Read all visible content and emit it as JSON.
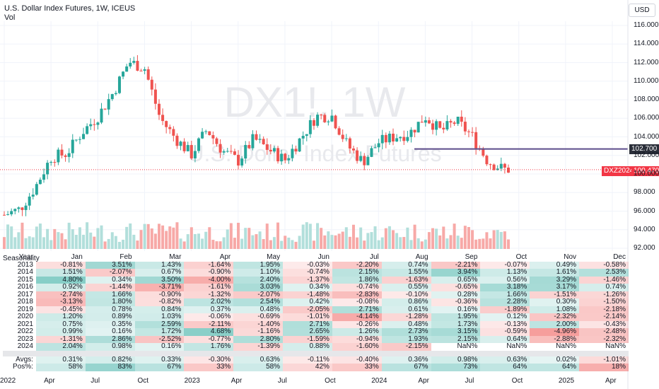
{
  "header": {
    "title": "U.S. Dollar Index Futures, 1W, ICEUS",
    "volume_label": "Vol"
  },
  "toolbar": {
    "currency": "USD"
  },
  "watermark": {
    "symbol": "DX1!, 1W",
    "description": "U.S. Dollar Index Futures"
  },
  "price_tags": {
    "level": "102.700",
    "last": "100.470",
    "symbol": "DXZ2024"
  },
  "colors": {
    "up": "#26a69a",
    "down": "#ef5350",
    "vol_up": "#b2dfdb",
    "vol_down": "#f7a9a7",
    "level_line": "#5b4b8a"
  },
  "chart_data": {
    "type": "candlestick",
    "title": "U.S. Dollar Index Futures, 1W, ICEUS",
    "ylim": [
      92,
      117
    ],
    "y_ticks": [
      "116.000",
      "114.000",
      "112.000",
      "110.000",
      "108.000",
      "106.000",
      "104.000",
      "102.000",
      "100.000",
      "98.000",
      "96.000",
      "94.000",
      "92.000"
    ],
    "x_ticks": [
      "2022",
      "Apr",
      "Jul",
      "Oct",
      "2023",
      "Apr",
      "Jul",
      "Oct",
      "2024",
      "Apr",
      "Jul",
      "Oct",
      "2025",
      "Apr"
    ],
    "horizontal_line": 102.7,
    "last_price": 100.47,
    "close_path": [
      [
        "2022-01",
        95.6
      ],
      [
        "2022-02",
        96.2
      ],
      [
        "2022-03",
        98.6
      ],
      [
        "2022-04",
        101.8
      ],
      [
        "2022-05",
        102.2
      ],
      [
        "2022-06",
        104.5
      ],
      [
        "2022-07",
        106.2
      ],
      [
        "2022-08",
        108.8
      ],
      [
        "2022-09",
        112.1
      ],
      [
        "2022-10",
        111.4
      ],
      [
        "2022-11",
        106.0
      ],
      [
        "2022-12",
        103.8
      ],
      [
        "2023-01",
        102.1
      ],
      [
        "2023-02",
        104.8
      ],
      [
        "2023-03",
        102.5
      ],
      [
        "2023-04",
        101.4
      ],
      [
        "2023-05",
        103.8
      ],
      [
        "2023-06",
        102.6
      ],
      [
        "2023-07",
        101.5
      ],
      [
        "2023-08",
        103.8
      ],
      [
        "2023-09",
        106.2
      ],
      [
        "2023-10",
        106.3
      ],
      [
        "2023-11",
        103.1
      ],
      [
        "2023-12",
        101.3
      ],
      [
        "2024-01",
        103.4
      ],
      [
        "2024-02",
        104.0
      ],
      [
        "2024-03",
        104.4
      ],
      [
        "2024-04",
        106.2
      ],
      [
        "2024-05",
        104.6
      ],
      [
        "2024-06",
        105.7
      ],
      [
        "2024-07",
        104.1
      ],
      [
        "2024-08",
        101.4
      ],
      [
        "2024-09",
        100.5
      ]
    ],
    "seasonals": {
      "title": "Seasonality",
      "columns": [
        "Year",
        "Jan",
        "Feb",
        "Mar",
        "Apr",
        "May",
        "Jun",
        "Jul",
        "Aug",
        "Sep",
        "Oct",
        "Nov",
        "Dec"
      ],
      "rows": [
        [
          "2013",
          "-0.81%",
          "3.51%",
          "1.43%",
          "-1.64%",
          "1.95%",
          "-0.03%",
          "-2.20%",
          "0.74%",
          "-2.21%",
          "-0.07%",
          "0.49%",
          "-0.58%"
        ],
        [
          "2014",
          "1.51%",
          "-2.07%",
          "0.67%",
          "-0.90%",
          "1.10%",
          "-0.74%",
          "2.15%",
          "1.55%",
          "3.94%",
          "1.13%",
          "1.61%",
          "2.53%"
        ],
        [
          "2015",
          "4.80%",
          "0.34%",
          "3.50%",
          "-4.00%",
          "2.40%",
          "-1.37%",
          "1.86%",
          "-1.63%",
          "0.65%",
          "0.56%",
          "3.29%",
          "-1.46%"
        ],
        [
          "2016",
          "0.92%",
          "-1.44%",
          "-3.71%",
          "-1.61%",
          "3.03%",
          "0.34%",
          "-0.74%",
          "0.55%",
          "-0.65%",
          "3.18%",
          "3.17%",
          "0.74%"
        ],
        [
          "2017",
          "-2.74%",
          "1.66%",
          "-0.90%",
          "-1.32%",
          "-2.07%",
          "-1.48%",
          "-2.83%",
          "-0.10%",
          "0.28%",
          "1.66%",
          "-1.51%",
          "-1.26%"
        ],
        [
          "2018",
          "-3.13%",
          "1.80%",
          "-0.82%",
          "2.02%",
          "2.54%",
          "0.42%",
          "-0.08%",
          "0.86%",
          "-0.36%",
          "2.28%",
          "0.30%",
          "-1.50%"
        ],
        [
          "2019",
          "-0.45%",
          "0.78%",
          "0.84%",
          "0.37%",
          "0.48%",
          "-2.05%",
          "2.71%",
          "0.61%",
          "0.16%",
          "-1.89%",
          "1.08%",
          "-2.18%"
        ],
        [
          "2020",
          "1.20%",
          "0.89%",
          "1.03%",
          "-0.06%",
          "-0.69%",
          "-1.01%",
          "-4.14%",
          "-1.28%",
          "1.95%",
          "0.12%",
          "-2.32%",
          "-2.14%"
        ],
        [
          "2021",
          "0.75%",
          "0.35%",
          "2.59%",
          "-2.11%",
          "-1.40%",
          "2.71%",
          "-0.26%",
          "0.48%",
          "1.73%",
          "-0.13%",
          "2.00%",
          "-0.43%"
        ],
        [
          "2022",
          "0.99%",
          "0.16%",
          "1.72%",
          "4.68%",
          "-1.16%",
          "2.65%",
          "1.26%",
          "2.73%",
          "3.15%",
          "-0.59%",
          "-4.96%",
          "-2.48%"
        ],
        [
          "2023",
          "-1.31%",
          "2.86%",
          "-2.52%",
          "-0.77%",
          "2.80%",
          "-1.59%",
          "-0.94%",
          "1.93%",
          "2.15%",
          "0.64%",
          "-2.88%",
          "-2.32%"
        ],
        [
          "2024",
          "2.04%",
          "0.98%",
          "0.16%",
          "1.76%",
          "-1.39%",
          "0.88%",
          "-1.60%",
          "-2.15%",
          "NaN%",
          "NaN%",
          "NaN%",
          "NaN%"
        ]
      ],
      "summary": [
        [
          "Avgs:",
          "0.31%",
          "0.82%",
          "0.33%",
          "-0.30%",
          "0.63%",
          "-0.11%",
          "-0.40%",
          "0.36%",
          "0.98%",
          "0.63%",
          "0.02%",
          "-1.01%"
        ],
        [
          "Pos%:",
          "58%",
          "83%",
          "67%",
          "33%",
          "58%",
          "42%",
          "33%",
          "67%",
          "73%",
          "64%",
          "64%",
          "18%"
        ]
      ]
    }
  }
}
